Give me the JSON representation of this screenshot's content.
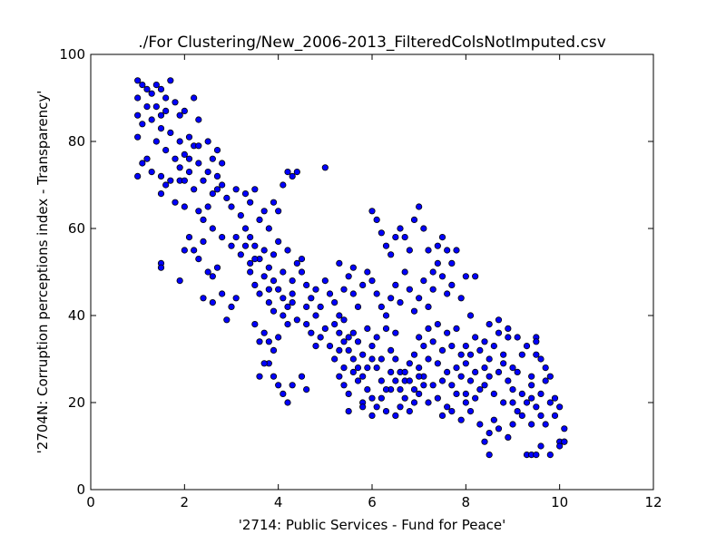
{
  "chart_data": {
    "type": "scatter",
    "title": "./For Clustering/New_2006-2013_FilteredColsNotImputed.csv",
    "xlabel": "'2714: Public Services - Fund for Peace'",
    "ylabel": "'2704N: Corruption perceptions index - Transparency'",
    "xlim": [
      0,
      12
    ],
    "ylim": [
      0,
      100
    ],
    "xticks": [
      0,
      2,
      4,
      6,
      8,
      10,
      12
    ],
    "yticks": [
      0,
      20,
      40,
      60,
      80,
      100
    ],
    "xtick_labels": [
      "0",
      "2",
      "4",
      "6",
      "8",
      "10",
      "12"
    ],
    "ytick_labels": [
      "0",
      "20",
      "40",
      "60",
      "80",
      "100"
    ],
    "grid": false,
    "marker_color": "#0000ff",
    "marker_edge": "#000000",
    "points": [
      [
        1.0,
        94
      ],
      [
        1.1,
        93
      ],
      [
        1.2,
        92
      ],
      [
        1.0,
        90
      ],
      [
        1.3,
        91
      ],
      [
        1.4,
        93
      ],
      [
        1.5,
        92
      ],
      [
        1.6,
        90
      ],
      [
        1.7,
        94
      ],
      [
        1.2,
        88
      ],
      [
        1.4,
        88
      ],
      [
        1.5,
        86
      ],
      [
        1.6,
        87
      ],
      [
        1.8,
        89
      ],
      [
        1.9,
        86
      ],
      [
        2.0,
        87
      ],
      [
        1.1,
        84
      ],
      [
        1.3,
        85
      ],
      [
        1.5,
        83
      ],
      [
        1.7,
        82
      ],
      [
        1.9,
        80
      ],
      [
        2.1,
        81
      ],
      [
        2.2,
        79
      ],
      [
        1.4,
        80
      ],
      [
        1.6,
        78
      ],
      [
        1.8,
        76
      ],
      [
        2.0,
        77
      ],
      [
        1.0,
        81
      ],
      [
        1.2,
        76
      ],
      [
        1.3,
        73
      ],
      [
        1.5,
        72
      ],
      [
        1.7,
        71
      ],
      [
        1.9,
        71
      ],
      [
        2.1,
        73
      ],
      [
        2.2,
        90
      ],
      [
        2.3,
        85
      ],
      [
        1.0,
        72
      ],
      [
        1.1,
        75
      ],
      [
        1.0,
        86
      ],
      [
        1.5,
        68
      ],
      [
        1.6,
        70
      ],
      [
        1.8,
        66
      ],
      [
        2.0,
        65
      ],
      [
        1.5,
        52
      ],
      [
        1.5,
        51
      ],
      [
        2.0,
        55
      ],
      [
        2.1,
        58
      ],
      [
        1.9,
        48
      ],
      [
        2.2,
        55
      ],
      [
        2.3,
        53
      ],
      [
        2.4,
        57
      ],
      [
        2.5,
        50
      ],
      [
        2.6,
        49
      ],
      [
        2.7,
        51
      ],
      [
        2.4,
        44
      ],
      [
        2.6,
        43
      ],
      [
        2.8,
        45
      ],
      [
        2.9,
        39
      ],
      [
        3.0,
        42
      ],
      [
        3.1,
        44
      ],
      [
        2.5,
        73
      ],
      [
        2.6,
        76
      ],
      [
        2.7,
        72
      ],
      [
        2.8,
        70
      ],
      [
        2.9,
        67
      ],
      [
        3.0,
        65
      ],
      [
        3.1,
        69
      ],
      [
        2.8,
        75
      ],
      [
        2.7,
        69
      ],
      [
        2.5,
        65
      ],
      [
        3.2,
        63
      ],
      [
        3.3,
        60
      ],
      [
        3.4,
        58
      ],
      [
        3.5,
        56
      ],
      [
        3.6,
        53
      ],
      [
        3.7,
        55
      ],
      [
        3.8,
        51
      ],
      [
        3.9,
        54
      ],
      [
        3.3,
        68
      ],
      [
        3.4,
        66
      ],
      [
        3.5,
        69
      ],
      [
        3.6,
        62
      ],
      [
        3.7,
        64
      ],
      [
        3.8,
        60
      ],
      [
        3.9,
        66
      ],
      [
        4.0,
        64
      ],
      [
        4.1,
        70
      ],
      [
        4.2,
        73
      ],
      [
        4.3,
        72
      ],
      [
        4.4,
        73
      ],
      [
        3.4,
        50
      ],
      [
        3.5,
        47
      ],
      [
        3.6,
        45
      ],
      [
        3.7,
        49
      ],
      [
        3.8,
        43
      ],
      [
        3.9,
        41
      ],
      [
        4.0,
        46
      ],
      [
        4.1,
        44
      ],
      [
        4.2,
        42
      ],
      [
        4.3,
        48
      ],
      [
        3.5,
        38
      ],
      [
        3.6,
        34
      ],
      [
        3.7,
        36
      ],
      [
        3.8,
        34
      ],
      [
        3.9,
        32
      ],
      [
        4.0,
        35
      ],
      [
        4.1,
        40
      ],
      [
        4.2,
        38
      ],
      [
        4.3,
        43
      ],
      [
        4.4,
        39
      ],
      [
        3.8,
        29
      ],
      [
        3.9,
        26
      ],
      [
        4.0,
        24
      ],
      [
        4.1,
        22
      ],
      [
        4.2,
        20
      ],
      [
        4.3,
        24
      ],
      [
        4.5,
        26
      ],
      [
        4.6,
        23
      ],
      [
        3.7,
        29
      ],
      [
        3.6,
        26
      ],
      [
        4.5,
        50
      ],
      [
        4.6,
        47
      ],
      [
        4.7,
        44
      ],
      [
        4.8,
        46
      ],
      [
        4.9,
        42
      ],
      [
        5.0,
        48
      ],
      [
        5.1,
        45
      ],
      [
        5.2,
        43
      ],
      [
        5.3,
        40
      ],
      [
        5.4,
        46
      ],
      [
        4.6,
        38
      ],
      [
        4.7,
        36
      ],
      [
        4.8,
        33
      ],
      [
        4.9,
        35
      ],
      [
        5.0,
        37
      ],
      [
        5.1,
        33
      ],
      [
        5.2,
        30
      ],
      [
        5.3,
        32
      ],
      [
        5.4,
        28
      ],
      [
        5.5,
        35
      ],
      [
        5.0,
        74
      ],
      [
        5.3,
        52
      ],
      [
        5.5,
        49
      ],
      [
        5.6,
        45
      ],
      [
        5.7,
        42
      ],
      [
        5.8,
        47
      ],
      [
        5.9,
        50
      ],
      [
        6.0,
        48
      ],
      [
        5.6,
        51
      ],
      [
        5.4,
        39
      ],
      [
        5.3,
        26
      ],
      [
        5.4,
        24
      ],
      [
        5.5,
        22
      ],
      [
        5.6,
        27
      ],
      [
        5.7,
        25
      ],
      [
        5.8,
        20
      ],
      [
        5.9,
        23
      ],
      [
        6.0,
        21
      ],
      [
        5.5,
        18
      ],
      [
        5.8,
        19
      ],
      [
        5.6,
        36
      ],
      [
        5.7,
        34
      ],
      [
        5.8,
        31
      ],
      [
        5.9,
        37
      ],
      [
        6.0,
        33
      ],
      [
        6.1,
        35
      ],
      [
        6.2,
        30
      ],
      [
        6.3,
        37
      ],
      [
        6.4,
        32
      ],
      [
        6.5,
        36
      ],
      [
        6.0,
        17
      ],
      [
        6.1,
        19
      ],
      [
        6.2,
        21
      ],
      [
        6.3,
        18
      ],
      [
        6.4,
        23
      ],
      [
        6.5,
        17
      ],
      [
        6.6,
        19
      ],
      [
        6.7,
        21
      ],
      [
        6.8,
        18
      ],
      [
        6.9,
        20
      ],
      [
        6.0,
        64
      ],
      [
        6.1,
        62
      ],
      [
        6.2,
        59
      ],
      [
        6.3,
        56
      ],
      [
        6.4,
        54
      ],
      [
        6.5,
        58
      ],
      [
        6.6,
        60
      ],
      [
        6.7,
        58
      ],
      [
        6.8,
        55
      ],
      [
        6.9,
        62
      ],
      [
        7.0,
        65
      ],
      [
        7.1,
        60
      ],
      [
        7.2,
        55
      ],
      [
        7.3,
        50
      ],
      [
        6.1,
        45
      ],
      [
        6.2,
        42
      ],
      [
        6.3,
        40
      ],
      [
        6.4,
        44
      ],
      [
        6.5,
        47
      ],
      [
        6.6,
        43
      ],
      [
        6.7,
        50
      ],
      [
        6.8,
        46
      ],
      [
        6.9,
        41
      ],
      [
        7.0,
        44
      ],
      [
        7.1,
        48
      ],
      [
        7.2,
        42
      ],
      [
        7.3,
        46
      ],
      [
        7.4,
        52
      ],
      [
        7.5,
        49
      ],
      [
        7.6,
        45
      ],
      [
        6.5,
        30
      ],
      [
        6.6,
        27
      ],
      [
        6.7,
        25
      ],
      [
        6.8,
        29
      ],
      [
        6.9,
        31
      ],
      [
        7.0,
        28
      ],
      [
        7.1,
        26
      ],
      [
        7.2,
        30
      ],
      [
        7.3,
        24
      ],
      [
        7.4,
        29
      ],
      [
        7.0,
        35
      ],
      [
        7.1,
        33
      ],
      [
        7.2,
        37
      ],
      [
        7.3,
        34
      ],
      [
        7.4,
        38
      ],
      [
        7.5,
        32
      ],
      [
        7.6,
        36
      ],
      [
        7.7,
        33
      ],
      [
        7.8,
        37
      ],
      [
        7.9,
        31
      ],
      [
        7.0,
        22
      ],
      [
        7.2,
        20
      ],
      [
        7.4,
        21
      ],
      [
        7.6,
        19
      ],
      [
        7.8,
        22
      ],
      [
        8.0,
        20
      ],
      [
        7.5,
        17
      ],
      [
        7.7,
        18
      ],
      [
        7.9,
        16
      ],
      [
        8.1,
        18
      ],
      [
        7.5,
        25
      ],
      [
        7.6,
        27
      ],
      [
        7.7,
        24
      ],
      [
        7.8,
        28
      ],
      [
        7.9,
        26
      ],
      [
        8.0,
        29
      ],
      [
        8.1,
        25
      ],
      [
        8.2,
        27
      ],
      [
        8.3,
        23
      ],
      [
        8.4,
        28
      ],
      [
        7.8,
        55
      ],
      [
        8.0,
        49
      ],
      [
        8.2,
        49
      ],
      [
        7.9,
        44
      ],
      [
        8.1,
        40
      ],
      [
        7.7,
        47
      ],
      [
        7.6,
        55
      ],
      [
        7.5,
        58
      ],
      [
        7.4,
        56
      ],
      [
        7.7,
        52
      ],
      [
        8.0,
        33
      ],
      [
        8.1,
        31
      ],
      [
        8.2,
        35
      ],
      [
        8.3,
        32
      ],
      [
        8.4,
        34
      ],
      [
        8.5,
        30
      ],
      [
        8.6,
        33
      ],
      [
        8.7,
        36
      ],
      [
        8.8,
        31
      ],
      [
        8.9,
        35
      ],
      [
        8.0,
        22
      ],
      [
        8.2,
        21
      ],
      [
        8.4,
        24
      ],
      [
        8.6,
        22
      ],
      [
        8.8,
        20
      ],
      [
        9.0,
        23
      ],
      [
        8.5,
        26
      ],
      [
        8.7,
        27
      ],
      [
        8.9,
        25
      ],
      [
        9.1,
        27
      ],
      [
        8.3,
        15
      ],
      [
        8.5,
        13
      ],
      [
        8.7,
        14
      ],
      [
        8.9,
        12
      ],
      [
        8.4,
        11
      ],
      [
        8.5,
        8
      ],
      [
        8.6,
        16
      ],
      [
        9.0,
        15
      ],
      [
        9.2,
        17
      ],
      [
        9.4,
        15
      ],
      [
        8.5,
        38
      ],
      [
        8.7,
        39
      ],
      [
        8.9,
        37
      ],
      [
        9.1,
        35
      ],
      [
        9.3,
        33
      ],
      [
        9.5,
        35
      ],
      [
        9.2,
        31
      ],
      [
        9.0,
        28
      ],
      [
        8.8,
        29
      ],
      [
        9.4,
        26
      ],
      [
        9.0,
        20
      ],
      [
        9.1,
        18
      ],
      [
        9.2,
        22
      ],
      [
        9.3,
        20
      ],
      [
        9.4,
        24
      ],
      [
        9.5,
        19
      ],
      [
        9.6,
        22
      ],
      [
        9.7,
        25
      ],
      [
        9.8,
        20
      ],
      [
        9.9,
        17
      ],
      [
        9.3,
        8
      ],
      [
        9.4,
        8
      ],
      [
        9.5,
        8
      ],
      [
        9.6,
        10
      ],
      [
        9.8,
        8
      ],
      [
        10.0,
        11
      ],
      [
        10.0,
        10
      ],
      [
        10.1,
        14
      ],
      [
        10.1,
        11
      ],
      [
        10.0,
        19
      ],
      [
        9.5,
        31
      ],
      [
        9.6,
        30
      ],
      [
        9.7,
        28
      ],
      [
        9.8,
        26
      ],
      [
        9.6,
        17
      ],
      [
        9.7,
        15
      ],
      [
        9.5,
        34
      ],
      [
        9.9,
        21
      ],
      [
        10.1,
        11
      ],
      [
        9.4,
        21
      ],
      [
        6.2,
        25
      ],
      [
        6.3,
        23
      ],
      [
        6.4,
        27
      ],
      [
        6.5,
        25
      ],
      [
        6.6,
        23
      ],
      [
        6.7,
        27
      ],
      [
        6.8,
        25
      ],
      [
        6.9,
        23
      ],
      [
        7.0,
        26
      ],
      [
        7.1,
        24
      ],
      [
        5.2,
        38
      ],
      [
        5.3,
        36
      ],
      [
        5.4,
        34
      ],
      [
        5.5,
        32
      ],
      [
        5.6,
        30
      ],
      [
        5.7,
        28
      ],
      [
        5.8,
        26
      ],
      [
        5.9,
        28
      ],
      [
        6.0,
        30
      ],
      [
        6.1,
        28
      ],
      [
        4.4,
        52
      ],
      [
        4.5,
        53
      ],
      [
        4.2,
        55
      ],
      [
        4.0,
        57
      ],
      [
        3.9,
        48
      ],
      [
        3.8,
        46
      ],
      [
        4.1,
        50
      ],
      [
        4.3,
        45
      ],
      [
        4.6,
        42
      ],
      [
        4.8,
        40
      ],
      [
        2.3,
        64
      ],
      [
        2.4,
        62
      ],
      [
        2.6,
        60
      ],
      [
        2.8,
        58
      ],
      [
        3.0,
        56
      ],
      [
        3.2,
        54
      ],
      [
        3.4,
        52
      ],
      [
        3.1,
        58
      ],
      [
        3.3,
        56
      ],
      [
        3.5,
        53
      ],
      [
        2.3,
        75
      ],
      [
        2.4,
        71
      ],
      [
        2.6,
        68
      ],
      [
        2.0,
        71
      ],
      [
        2.2,
        69
      ],
      [
        1.9,
        74
      ],
      [
        2.1,
        76
      ],
      [
        2.3,
        79
      ],
      [
        2.5,
        80
      ],
      [
        2.7,
        78
      ]
    ]
  }
}
